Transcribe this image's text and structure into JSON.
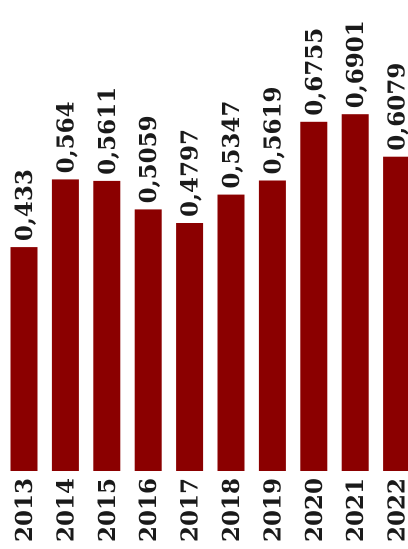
{
  "chart_data": {
    "type": "bar",
    "categories": [
      "2013",
      "2014",
      "2015",
      "2016",
      "2017",
      "2018",
      "2019",
      "2020",
      "2021",
      "2022"
    ],
    "values": [
      0.433,
      0.564,
      0.5611,
      0.5059,
      0.4797,
      0.5347,
      0.5619,
      0.6755,
      0.6901,
      0.6079
    ],
    "value_labels": [
      "0,433",
      "0,564",
      "0,5611",
      "0,5059",
      "0,4797",
      "0,5347",
      "0,5619",
      "0,6755",
      "0,6901",
      "0,6079"
    ],
    "bar_color": "#8b0000",
    "ylim": [
      0,
      0.8
    ],
    "grid": false,
    "legend": "none"
  }
}
